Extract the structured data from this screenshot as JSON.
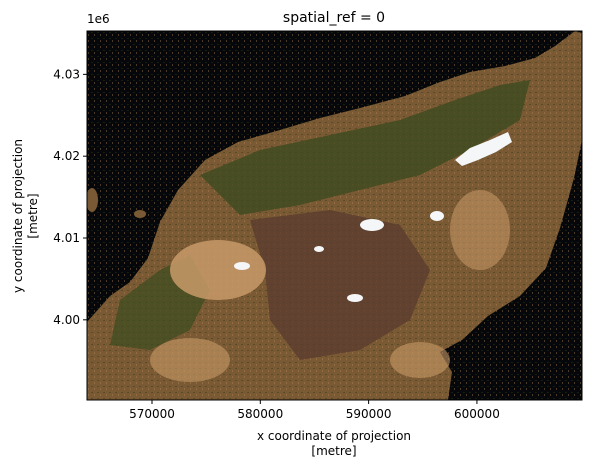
{
  "chart_data": {
    "type": "heatmap",
    "title": "spatial_ref = 0",
    "xlabel": "x coordinate of projection\n[metre]",
    "ylabel": "y coordinate of projection\n[metre]",
    "y_offset_label": "1e6",
    "x_ticks": [
      570000,
      580000,
      590000,
      600000
    ],
    "x_tick_labels": [
      "570000",
      "580000",
      "590000",
      "600000"
    ],
    "y_ticks": [
      4.0,
      4.01,
      4.02,
      4.03
    ],
    "y_tick_labels": [
      "4.00",
      "4.01",
      "4.02",
      "4.03"
    ],
    "xlim": [
      564000,
      609700
    ],
    "ylim": [
      3990200,
      4035300
    ],
    "grid": false,
    "colors": {
      "sea": "#05070a",
      "land_base": "#7a5a34",
      "vegetation": "#3a4a1e",
      "bare_soil": "#c89a68",
      "burn_scar": "#5a3a2e",
      "cloud": "#f4f6f8"
    }
  }
}
